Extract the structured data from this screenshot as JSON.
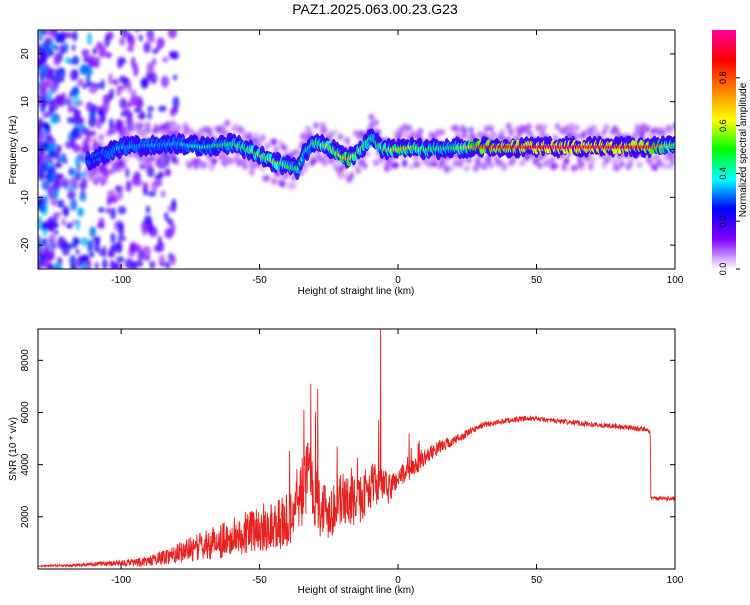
{
  "figure": {
    "title": "PAZ1.2025.063.00.23.G23"
  },
  "chart_data": [
    {
      "type": "heatmap",
      "xlabel": "Height of straight line (km)",
      "ylabel": "Frequency (Hz)",
      "xlim": [
        -130,
        100
      ],
      "ylim": [
        -25,
        25
      ],
      "xticks": [
        -100,
        -50,
        0,
        50,
        100
      ],
      "yticks": [
        -20,
        -10,
        0,
        10,
        20
      ],
      "grid": false,
      "ridge": {
        "x": [
          -110,
          -100,
          -90,
          -80,
          -70,
          -60,
          -55,
          -50,
          -45,
          -40,
          -36,
          -34,
          -32,
          -30,
          -25,
          -20,
          -18,
          -15,
          -12,
          -10,
          -5,
          0,
          5,
          10,
          20,
          30,
          50,
          70,
          90,
          100
        ],
        "y": [
          -2,
          0.5,
          0.8,
          1.2,
          0.5,
          1.2,
          0.2,
          -1.2,
          -2.5,
          -3.5,
          -4.2,
          -1,
          0.5,
          1.5,
          0.5,
          -1.5,
          -2,
          -1,
          1,
          2.5,
          0,
          0,
          0.5,
          0,
          0.3,
          0.5,
          0.5,
          0.5,
          0.5,
          0.8
        ],
        "amplitude": [
          0.25,
          0.35,
          0.35,
          0.35,
          0.45,
          0.5,
          0.55,
          0.6,
          0.6,
          0.55,
          0.5,
          0.4,
          0.45,
          0.55,
          0.6,
          0.7,
          0.75,
          0.6,
          0.55,
          0.5,
          0.55,
          0.7,
          0.65,
          0.55,
          0.5,
          0.85,
          0.95,
          0.95,
          0.9,
          0.5
        ]
      },
      "colorbar": {
        "label": "Normalized spectral amplitude",
        "range": [
          0,
          1
        ],
        "ticks": [
          "0.0",
          "0.2",
          "0.4",
          "0.6",
          "0.8"
        ],
        "colors": [
          "#ffffff",
          "#8000ff",
          "#0000ff",
          "#00ffff",
          "#00ff00",
          "#ffff00",
          "#ff8000",
          "#ff0000",
          "#ff00a0"
        ]
      }
    },
    {
      "type": "line",
      "xlabel": "Height of straight line (km)",
      "ylabel": "SNR (10 * v/v)",
      "xlim": [
        -130,
        100
      ],
      "ylim": [
        0,
        9200
      ],
      "xticks": [
        -100,
        -50,
        0,
        50,
        100
      ],
      "yticks": [
        2000,
        4000,
        6000,
        8000
      ],
      "grid": false,
      "series": [
        {
          "color": "#e8221f",
          "x": [
            -130,
            -120,
            -110,
            -100,
            -90,
            -85,
            -80,
            -75,
            -70,
            -65,
            -60,
            -55,
            -50,
            -45,
            -40,
            -36,
            -34,
            -32,
            -30,
            -28,
            -25,
            -22,
            -20,
            -18,
            -15,
            -12,
            -10,
            -6,
            -4,
            -3,
            0,
            5,
            10,
            15,
            20,
            25,
            30,
            35,
            40,
            45,
            50,
            55,
            60,
            65,
            70,
            75,
            80,
            85,
            90,
            91,
            91.5,
            95,
            100
          ],
          "y": [
            120,
            130,
            180,
            220,
            300,
            450,
            600,
            750,
            900,
            1050,
            1200,
            1400,
            1550,
            1700,
            1800,
            2600,
            3200,
            3800,
            2900,
            2400,
            2200,
            2500,
            2700,
            2600,
            2500,
            2900,
            3200,
            3300,
            3000,
            3100,
            3500,
            3800,
            4300,
            4700,
            4900,
            5200,
            5500,
            5600,
            5700,
            5750,
            5750,
            5700,
            5650,
            5600,
            5550,
            5500,
            5450,
            5400,
            5350,
            5300,
            2700,
            2650,
            2650
          ],
          "noise": [
            30,
            40,
            80,
            120,
            200,
            280,
            380,
            480,
            560,
            650,
            750,
            800,
            900,
            1000,
            1100,
            1300,
            1400,
            1400,
            1300,
            1200,
            1100,
            1000,
            1000,
            1000,
            950,
            900,
            850,
            750,
            650,
            600,
            400,
            350,
            300,
            250,
            200,
            150,
            120,
            100,
            100,
            100,
            100,
            100,
            100,
            100,
            100,
            100,
            100,
            100,
            100,
            100,
            80,
            80,
            80
          ]
        }
      ],
      "spikes": [
        {
          "x": -31.5,
          "y": 7100
        },
        {
          "x": -29,
          "y": 6900
        },
        {
          "x": -34,
          "y": 6100
        },
        {
          "x": -22,
          "y": 4700
        },
        {
          "x": -7,
          "y": 5700
        },
        {
          "x": -6.3,
          "y": 9200
        },
        {
          "x": 4,
          "y": 5200
        }
      ]
    }
  ]
}
